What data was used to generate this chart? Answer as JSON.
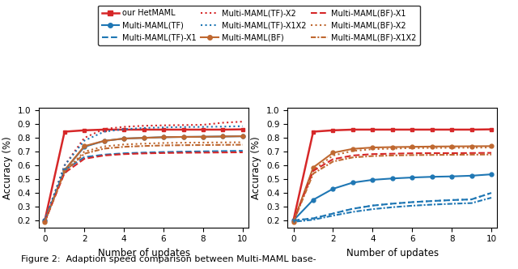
{
  "x": [
    0,
    1,
    2,
    3,
    4,
    5,
    6,
    7,
    8,
    9,
    10
  ],
  "left": {
    "our_HetMAML": [
      0.2,
      0.845,
      0.855,
      0.86,
      0.86,
      0.86,
      0.86,
      0.86,
      0.86,
      0.86,
      0.862
    ],
    "Multi_MAML_TF": [
      0.2,
      0.565,
      0.735,
      0.778,
      0.795,
      0.8,
      0.805,
      0.807,
      0.808,
      0.81,
      0.812
    ],
    "Multi_MAML_TF_X1": [
      0.2,
      0.565,
      0.66,
      0.678,
      0.688,
      0.693,
      0.697,
      0.7,
      0.702,
      0.704,
      0.706
    ],
    "Multi_MAML_TF_X2": [
      0.2,
      0.6,
      0.8,
      0.865,
      0.88,
      0.888,
      0.891,
      0.893,
      0.895,
      0.91,
      0.918
    ],
    "Multi_MAML_TF_X1X2": [
      0.2,
      0.6,
      0.78,
      0.845,
      0.863,
      0.872,
      0.876,
      0.879,
      0.88,
      0.882,
      0.885
    ],
    "Multi_MAML_BF": [
      0.19,
      0.565,
      0.74,
      0.778,
      0.795,
      0.8,
      0.805,
      0.807,
      0.808,
      0.81,
      0.812
    ],
    "Multi_MAML_BF_X1": [
      0.19,
      0.545,
      0.648,
      0.672,
      0.682,
      0.687,
      0.69,
      0.692,
      0.693,
      0.694,
      0.695
    ],
    "Multi_MAML_BF_X2": [
      0.19,
      0.555,
      0.7,
      0.738,
      0.752,
      0.758,
      0.763,
      0.765,
      0.766,
      0.767,
      0.768
    ],
    "Multi_MAML_BF_X1X2": [
      0.19,
      0.555,
      0.685,
      0.722,
      0.735,
      0.741,
      0.745,
      0.747,
      0.748,
      0.749,
      0.75
    ]
  },
  "right": {
    "our_HetMAML": [
      0.2,
      0.845,
      0.855,
      0.86,
      0.86,
      0.86,
      0.86,
      0.86,
      0.86,
      0.86,
      0.862
    ],
    "Multi_MAML_TF": [
      0.2,
      0.35,
      0.43,
      0.475,
      0.495,
      0.505,
      0.512,
      0.517,
      0.52,
      0.525,
      0.535
    ],
    "Multi_MAML_TF_X1": [
      0.2,
      0.215,
      0.25,
      0.285,
      0.308,
      0.322,
      0.333,
      0.341,
      0.348,
      0.353,
      0.4
    ],
    "Multi_MAML_TF_X1X2": [
      0.19,
      0.205,
      0.235,
      0.262,
      0.282,
      0.296,
      0.307,
      0.315,
      0.321,
      0.326,
      0.365
    ],
    "Multi_MAML_BF": [
      0.19,
      0.585,
      0.692,
      0.72,
      0.73,
      0.733,
      0.735,
      0.737,
      0.738,
      0.739,
      0.74
    ],
    "Multi_MAML_BF_X1": [
      0.19,
      0.56,
      0.645,
      0.672,
      0.682,
      0.685,
      0.688,
      0.689,
      0.689,
      0.69,
      0.691
    ],
    "Multi_MAML_BF_X2": [
      0.19,
      0.565,
      0.672,
      0.705,
      0.718,
      0.722,
      0.726,
      0.727,
      0.728,
      0.729,
      0.73
    ],
    "Multi_MAML_BF_X1X2": [
      0.19,
      0.54,
      0.628,
      0.658,
      0.668,
      0.672,
      0.675,
      0.676,
      0.677,
      0.678,
      0.679
    ]
  },
  "colors": {
    "red": "#d62728",
    "blue": "#1f77b4",
    "orange": "#bf6830"
  },
  "ylim": [
    0.15,
    1.02
  ],
  "yticks": [
    0.2,
    0.3,
    0.4,
    0.5,
    0.6,
    0.7,
    0.8,
    0.9,
    1.0
  ],
  "xlabel": "Number of updates",
  "ylabel": "Accuracy (%)",
  "caption": "Figure 2:  Adaption speed comparison between Multi-MAML base-"
}
